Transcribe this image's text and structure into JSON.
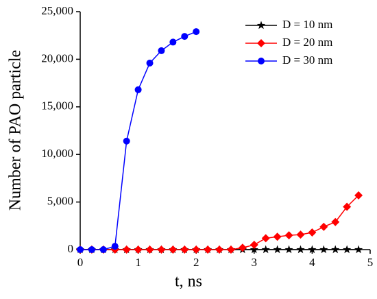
{
  "chart_data": {
    "type": "line",
    "xlabel": "t, ns",
    "ylabel": "Number of PAO particle",
    "xlim": [
      0,
      5
    ],
    "xticks": [
      0,
      1,
      2,
      3,
      4,
      5
    ],
    "ylim": [
      0,
      25000
    ],
    "yticks": [
      0,
      {
        "value": 5000,
        "label": "5,000"
      },
      {
        "value": 10000,
        "label": "10,000"
      },
      {
        "value": 15000,
        "label": "15,000"
      },
      {
        "value": 20000,
        "label": "20,000"
      },
      {
        "value": 25000,
        "label": "25,000"
      }
    ],
    "legend": "upper right",
    "series": [
      {
        "name": "D = 10 nm",
        "color": "#000000",
        "marker": "star",
        "x": [
          0,
          0.2,
          0.4,
          0.6,
          0.8,
          1.0,
          1.2,
          1.4,
          1.6,
          1.8,
          2.0,
          2.2,
          2.4,
          2.6,
          2.8,
          3.0,
          3.2,
          3.4,
          3.6,
          3.8,
          4.0,
          4.2,
          4.4,
          4.6,
          4.8
        ],
        "values": [
          0,
          0,
          0,
          0,
          0,
          0,
          0,
          0,
          0,
          0,
          0,
          0,
          0,
          0,
          0,
          0,
          0,
          0,
          0,
          0,
          0,
          0,
          0,
          0,
          0
        ]
      },
      {
        "name": "D = 20 nm",
        "color": "#ff0000",
        "marker": "diamond",
        "x": [
          0,
          0.2,
          0.4,
          0.6,
          0.8,
          1.0,
          1.2,
          1.4,
          1.6,
          1.8,
          2.0,
          2.2,
          2.4,
          2.6,
          2.8,
          3.0,
          3.2,
          3.4,
          3.6,
          3.8,
          4.0,
          4.2,
          4.4,
          4.6,
          4.8
        ],
        "values": [
          0,
          0,
          0,
          0,
          0,
          0,
          0,
          0,
          0,
          0,
          0,
          0,
          0,
          0,
          200,
          500,
          1200,
          1350,
          1500,
          1580,
          1800,
          2400,
          2900,
          4500,
          5700
        ]
      },
      {
        "name": "D = 30 nm",
        "color": "#0000ff",
        "marker": "circle",
        "x": [
          0,
          0.2,
          0.4,
          0.6,
          0.8,
          1.0,
          1.2,
          1.4,
          1.6,
          1.8,
          2.0
        ],
        "values": [
          0,
          0,
          0,
          350,
          11400,
          16800,
          19600,
          20900,
          21800,
          22400,
          22900
        ]
      }
    ]
  }
}
